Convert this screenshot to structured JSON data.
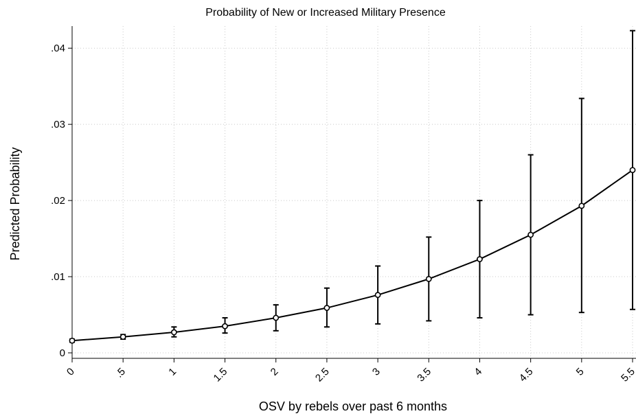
{
  "chart_data": {
    "type": "line",
    "title": "Probability of New or Increased Military Presence",
    "xlabel": "OSV by rebels over past 6 months",
    "ylabel": "Predicted Probability",
    "x": [
      0,
      0.5,
      1,
      1.5,
      2,
      2.5,
      3,
      3.5,
      4,
      4.5,
      5,
      5.5
    ],
    "x_tick_labels": [
      "0",
      ".5",
      "1",
      "1.5",
      "2",
      "2.5",
      "3",
      "3.5",
      "4",
      "4.5",
      "5",
      "5.5"
    ],
    "y_ticks": [
      0,
      0.01,
      0.02,
      0.03,
      0.04
    ],
    "y_tick_labels": [
      "0",
      ".01",
      ".02",
      ".03",
      ".04"
    ],
    "xlim": [
      0,
      5.5
    ],
    "ylim": [
      0,
      0.042
    ],
    "grid": true,
    "series": [
      {
        "values": [
          0.0016,
          0.0021,
          0.0027,
          0.0035,
          0.0046,
          0.0059,
          0.0076,
          0.0097,
          0.0123,
          0.0155,
          0.0193,
          0.024
        ],
        "ci_lower": [
          0.0014,
          0.0018,
          0.0021,
          0.0026,
          0.0029,
          0.0034,
          0.0038,
          0.0042,
          0.0046,
          0.005,
          0.0053,
          0.0057
        ],
        "ci_upper": [
          0.0018,
          0.0024,
          0.0034,
          0.0046,
          0.0063,
          0.0085,
          0.0114,
          0.0152,
          0.02,
          0.026,
          0.0334,
          0.0423
        ]
      }
    ]
  }
}
